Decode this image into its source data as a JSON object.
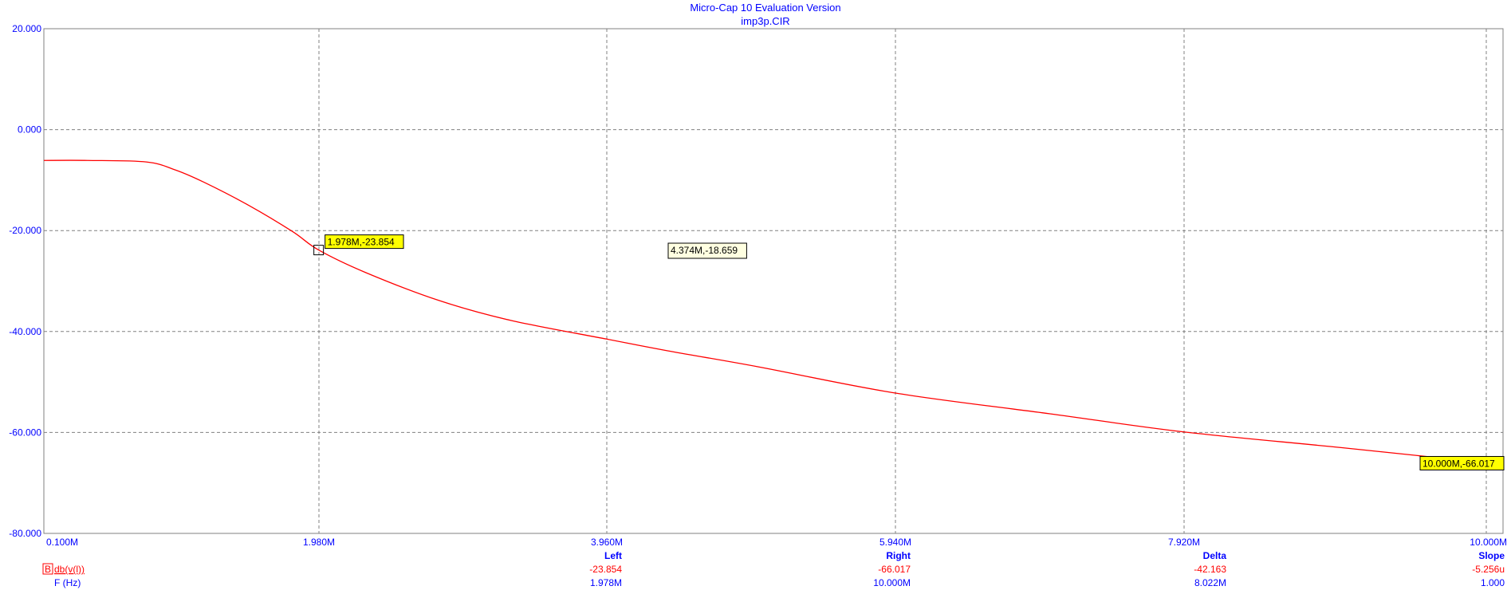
{
  "header": {
    "title": "Micro-Cap 10 Evaluation Version",
    "subtitle": "imp3p.CIR"
  },
  "chart_data": {
    "type": "line",
    "x_ticks": [
      "0.100M",
      "1.980M",
      "3.960M",
      "5.940M",
      "7.920M",
      "10.000M"
    ],
    "x_tick_values": [
      0.1,
      1.98,
      3.96,
      5.94,
      7.92,
      10.0
    ],
    "y_ticks": [
      "20.000",
      "0.000",
      "-20.000",
      "-40.000",
      "-60.000",
      "-80.000"
    ],
    "y_tick_values": [
      20,
      0,
      -20,
      -40,
      -60,
      -80
    ],
    "xlim": [
      0.1,
      10.0
    ],
    "ylim": [
      -80,
      20
    ],
    "grid": true,
    "series": [
      {
        "name": "db(v(l))",
        "color": "#ff0000",
        "x": [
          0.1,
          0.4,
          0.8,
          1.0,
          1.2,
          1.5,
          1.8,
          1.978,
          2.3,
          2.8,
          3.3,
          3.96,
          4.374,
          5.0,
          5.94,
          7.0,
          7.92,
          9.0,
          10.0
        ],
        "y": [
          -6.1,
          -6.1,
          -6.4,
          -8.0,
          -10.5,
          -15.0,
          -20.2,
          -23.854,
          -28.3,
          -33.8,
          -37.8,
          -41.5,
          -43.8,
          -47.0,
          -52.2,
          -56.3,
          -59.9,
          -63.0,
          -66.017
        ]
      }
    ],
    "annotations": [
      {
        "label": "1.978M,-23.854",
        "x": 1.978,
        "y": -23.854,
        "style": "cursor"
      },
      {
        "label": "4.374M,-18.659",
        "x": 4.374,
        "y": -18.659,
        "style": "tooltip"
      },
      {
        "label": "10.000M,-66.017",
        "x": 10.0,
        "y": -66.017,
        "style": "cursor"
      }
    ]
  },
  "readout": {
    "headers": {
      "left": "Left",
      "right": "Right",
      "delta": "Delta",
      "slope": "Slope"
    },
    "trace": {
      "marker": "B",
      "name": "db(v(l))",
      "left": "-23.854",
      "right": "-66.017",
      "delta": "-42.163",
      "slope": "-5.256u"
    },
    "xvar": {
      "name": "F (Hz)",
      "left": "1.978M",
      "right": "10.000M",
      "delta": "8.022M",
      "slope": "1.000"
    }
  }
}
